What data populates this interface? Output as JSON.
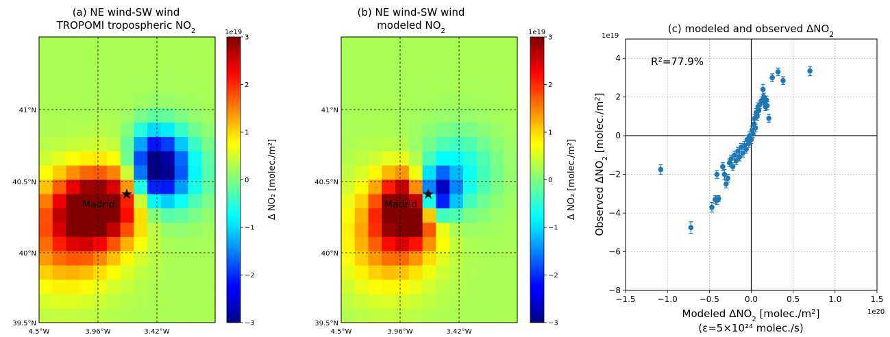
{
  "chart_data": [
    {
      "type": "heatmap",
      "panel": "a",
      "title_line1": "(a) NE wind-SW wind",
      "title_line2_prefix": "TROPOMI tropospheric NO",
      "title_line2_sub": "2",
      "x_ticks": [
        "4.5°W",
        "3.96°W",
        "3.42°W"
      ],
      "y_ticks": [
        "39.5°N",
        "40°N",
        "40.5°N",
        "41°N"
      ],
      "city_label": "Madrid",
      "colorbar": {
        "multiplier": "1e19",
        "label": "Δ NO₂ [molec./m²]",
        "range": [
          -3,
          3
        ],
        "ticks": [
          "3",
          "2",
          "1",
          "0",
          "−1",
          "−2",
          "−3"
        ]
      },
      "grid_cols": 13,
      "grid_rows": 20,
      "hotspots": [
        {
          "col": 3.5,
          "row": 11.5,
          "amp": 3.0,
          "sx": 1.9,
          "sy": 1.8
        },
        {
          "col": 1.5,
          "row": 13.5,
          "amp": 1.4,
          "sx": 2.6,
          "sy": 2.6
        },
        {
          "col": 6.0,
          "row": 10.0,
          "amp": 1.0,
          "sx": 1.2,
          "sy": 2.2
        },
        {
          "col": 8.0,
          "row": 8.5,
          "amp": -3.0,
          "sx": 1.4,
          "sy": 1.7
        },
        {
          "col": 9.5,
          "row": 9.0,
          "amp": -1.0,
          "sx": 2.0,
          "sy": 2.0
        }
      ]
    },
    {
      "type": "heatmap",
      "panel": "b",
      "title_line1": "(b) NE wind-SW wind",
      "title_line2_prefix": "modeled NO",
      "title_line2_sub": "2",
      "x_ticks": [
        "4.5°W",
        "3.96°W",
        "3.42°W"
      ],
      "y_ticks": [
        "39.5°N",
        "40°N",
        "40.5°N",
        "41°N"
      ],
      "city_label": "Madrid",
      "colorbar": {
        "multiplier": "1e19",
        "label": "Δ NO₂ [molec./m²]",
        "range": [
          -3,
          3
        ],
        "ticks": [
          "3",
          "2",
          "1",
          "0",
          "−1",
          "−2",
          "−3"
        ]
      },
      "grid_cols": 13,
      "grid_rows": 20,
      "hotspots": [
        {
          "col": 4.5,
          "row": 11.5,
          "amp": 3.3,
          "sx": 1.5,
          "sy": 1.7
        },
        {
          "col": 3.0,
          "row": 13.5,
          "amp": 1.3,
          "sx": 2.3,
          "sy": 2.6
        },
        {
          "col": 6.5,
          "row": 10.5,
          "amp": -3.4,
          "sx": 1.0,
          "sy": 1.2
        },
        {
          "col": 8.0,
          "row": 9.0,
          "amp": -1.0,
          "sx": 2.0,
          "sy": 2.0
        }
      ]
    },
    {
      "type": "scatter",
      "panel": "c",
      "title_prefix": "(c) modeled and observed ΔNO",
      "title_sub": "2",
      "x_multiplier": "1e20",
      "y_multiplier": "1e19",
      "xlabel_prefix": "Modeled ΔNO",
      "xlabel_sub": "2",
      "xlabel_suffix": " [molec./m",
      "xlabel_sup": "2",
      "xlabel_end": "]",
      "xlabel2": "(ε=5×10²⁴ molec./s)",
      "ylabel_prefix": "Observed ΔNO",
      "ylabel_sub": "2",
      "ylabel_suffix": " [molec./m",
      "ylabel_sup": "2",
      "ylabel_end": "]",
      "annotation_prefix": "R",
      "annotation_sup": "2",
      "annotation_value": "=77.9%",
      "xlim": [
        -1.5,
        1.5
      ],
      "ylim": [
        -8,
        5
      ],
      "x_ticks": [
        "−1.5",
        "−1.0",
        "−0.5",
        "0.0",
        "0.5",
        "1.0",
        "1.5"
      ],
      "y_ticks": [
        "4",
        "2",
        "0",
        "−2",
        "−4",
        "−6",
        "−8"
      ],
      "grid": true,
      "points": [
        {
          "x": -1.08,
          "y": -1.75,
          "e": 0.25
        },
        {
          "x": -0.72,
          "y": -4.75,
          "e": 0.3
        },
        {
          "x": -0.47,
          "y": -3.7,
          "e": 0.25
        },
        {
          "x": -0.43,
          "y": -3.3,
          "e": 0.2
        },
        {
          "x": -0.41,
          "y": -3.35,
          "e": 0.2
        },
        {
          "x": -0.39,
          "y": -3.25,
          "e": 0.15
        },
        {
          "x": -0.41,
          "y": -2.0,
          "e": 0.2
        },
        {
          "x": -0.34,
          "y": -1.6,
          "e": 0.2
        },
        {
          "x": -0.32,
          "y": -2.0,
          "e": 0.25
        },
        {
          "x": -0.3,
          "y": -2.5,
          "e": 0.2
        },
        {
          "x": -0.28,
          "y": -2.2,
          "e": 0.2
        },
        {
          "x": -0.26,
          "y": -1.4,
          "e": 0.2
        },
        {
          "x": -0.24,
          "y": -1.2,
          "e": 0.2
        },
        {
          "x": -0.22,
          "y": -1.6,
          "e": 0.2
        },
        {
          "x": -0.2,
          "y": -1.0,
          "e": 0.2
        },
        {
          "x": -0.18,
          "y": -1.3,
          "e": 0.2
        },
        {
          "x": -0.16,
          "y": -0.8,
          "e": 0.2
        },
        {
          "x": -0.14,
          "y": -1.1,
          "e": 0.2
        },
        {
          "x": -0.12,
          "y": -0.6,
          "e": 0.2
        },
        {
          "x": -0.1,
          "y": -0.9,
          "e": 0.2
        },
        {
          "x": -0.08,
          "y": -0.5,
          "e": 0.2
        },
        {
          "x": -0.06,
          "y": -0.7,
          "e": 0.2
        },
        {
          "x": -0.05,
          "y": -0.2,
          "e": 0.2
        },
        {
          "x": -0.03,
          "y": -0.4,
          "e": 0.2
        },
        {
          "x": -0.02,
          "y": 0.0,
          "e": 0.2
        },
        {
          "x": 0.0,
          "y": -0.2,
          "e": 0.2
        },
        {
          "x": 0.01,
          "y": 0.3,
          "e": 0.2
        },
        {
          "x": 0.02,
          "y": 0.1,
          "e": 0.2
        },
        {
          "x": 0.03,
          "y": 0.6,
          "e": 0.2
        },
        {
          "x": 0.04,
          "y": 0.9,
          "e": 0.2
        },
        {
          "x": 0.05,
          "y": 0.4,
          "e": 0.2
        },
        {
          "x": 0.06,
          "y": 1.2,
          "e": 0.2
        },
        {
          "x": 0.07,
          "y": 1.0,
          "e": 0.2
        },
        {
          "x": 0.08,
          "y": 1.5,
          "e": 0.2
        },
        {
          "x": 0.09,
          "y": 1.3,
          "e": 0.2
        },
        {
          "x": 0.1,
          "y": 1.6,
          "e": 0.2
        },
        {
          "x": 0.12,
          "y": 1.8,
          "e": 0.2
        },
        {
          "x": 0.14,
          "y": 2.4,
          "e": 0.25
        },
        {
          "x": 0.15,
          "y": 2.0,
          "e": 0.2
        },
        {
          "x": 0.16,
          "y": 1.7,
          "e": 0.2
        },
        {
          "x": 0.17,
          "y": 1.5,
          "e": 0.2
        },
        {
          "x": 0.18,
          "y": 1.85,
          "e": 0.2
        },
        {
          "x": 0.19,
          "y": 1.55,
          "e": 0.2
        },
        {
          "x": 0.21,
          "y": 0.9,
          "e": 0.2
        },
        {
          "x": 0.25,
          "y": 3.0,
          "e": 0.2
        },
        {
          "x": 0.32,
          "y": 3.3,
          "e": 0.2
        },
        {
          "x": 0.38,
          "y": 2.85,
          "e": 0.2
        },
        {
          "x": 0.7,
          "y": 3.35,
          "e": 0.25
        }
      ]
    }
  ]
}
